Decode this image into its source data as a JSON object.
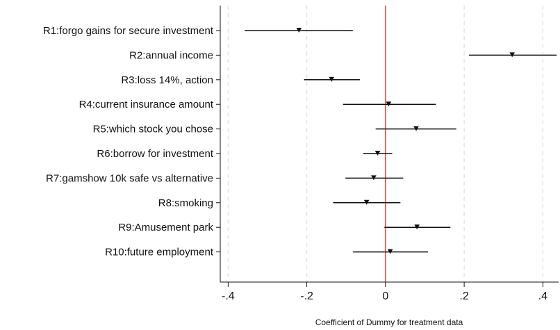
{
  "chart_data": {
    "type": "coefficient-plot",
    "orientation": "horizontal",
    "categories": [
      "R1:forgo gains for secure investment",
      "R2:annual income",
      "R3:loss 14%, action",
      "R4:current insurance amount",
      "R5:which stock you chose",
      "R6:borrow for investment",
      "R7:gamshow 10k safe vs alternative",
      "R8:smoking",
      "R9:Amusement park",
      "R10:future employment"
    ],
    "series": [
      {
        "estimates": [
          -0.22,
          0.322,
          -0.137,
          0.008,
          0.078,
          -0.02,
          -0.03,
          -0.048,
          0.08,
          0.012
        ],
        "ci_low": [
          -0.358,
          0.212,
          -0.207,
          -0.108,
          -0.025,
          -0.057,
          -0.102,
          -0.133,
          -0.003,
          -0.083
        ],
        "ci_high": [
          -0.083,
          0.435,
          -0.065,
          0.128,
          0.18,
          0.017,
          0.045,
          0.038,
          0.165,
          0.108
        ]
      }
    ],
    "xlim": [
      -0.42,
      0.44
    ],
    "xticks": [
      -0.4,
      -0.2,
      0,
      0.2,
      0.4
    ],
    "xtick_labels": [
      "-.4",
      "-.2",
      "0",
      ".2",
      ".4"
    ],
    "xlabel": "Coefficient of Dummy for treatment data",
    "ylabel": "",
    "title": "",
    "reference_line": {
      "x": 0,
      "color": "#e8453c"
    },
    "grid": "vertical dashed at x ticks",
    "legend": "none",
    "colors": {
      "marks": "#111111",
      "grid": "#dddddd",
      "axis": "#111111"
    }
  }
}
